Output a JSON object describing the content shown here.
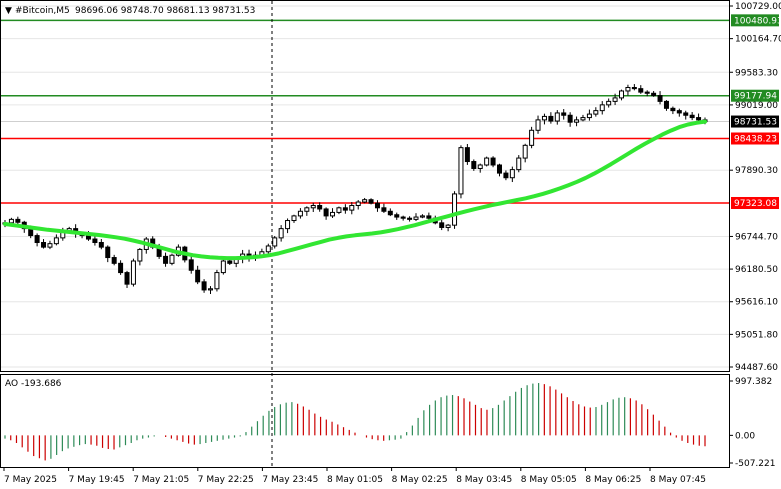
{
  "header": {
    "symbol": "#Bitcoin,M5",
    "ohlc": "98696.06 98748.70 98681.13 98731.53"
  },
  "ao_panel": {
    "label": "AO -193.686",
    "ticks": [
      "997.382",
      "0.00",
      "-507.221"
    ]
  },
  "colors": {
    "support_resistance_red": "#ff0000",
    "target_green": "#228b22",
    "moving_average": "#32e632",
    "ao_up": "#2e8b57",
    "ao_down": "#cc0000",
    "candle": "#000000",
    "current_price_bg": "#000000"
  },
  "chart_data": {
    "type": "candlestick",
    "ylim": [
      94487.6,
      100729.0
    ],
    "price_ticks": [
      "100729.00",
      "100164.70",
      "99583.30",
      "99019.00",
      "97890.30",
      "96744.70",
      "96180.50",
      "95616.10",
      "95051.80",
      "94487.60"
    ],
    "time_ticks": [
      "7 May 2025",
      "7 May 19:45",
      "7 May 21:05",
      "7 May 22:25",
      "7 May 23:45",
      "8 May 01:05",
      "8 May 02:25",
      "8 May 03:45",
      "8 May 05:05",
      "8 May 06:25",
      "8 May 07:45"
    ],
    "levels": [
      {
        "label": "100480.93",
        "value": 100480.93,
        "color": "green"
      },
      {
        "label": "99177.94",
        "value": 99177.94,
        "color": "green"
      },
      {
        "label": "98438.23",
        "value": 98438.23,
        "color": "red"
      },
      {
        "label": "97323.08",
        "value": 97323.08,
        "color": "red"
      }
    ],
    "current_price": {
      "label": "98731.53",
      "value": 98731.53
    },
    "close_series": [
      96980,
      97040,
      96990,
      96880,
      96760,
      96640,
      96560,
      96620,
      96720,
      96840,
      96880,
      96800,
      96760,
      96700,
      96640,
      96560,
      96380,
      96280,
      96120,
      95920,
      96320,
      96520,
      96700,
      96560,
      96400,
      96280,
      96420,
      96560,
      96340,
      96160,
      95960,
      95820,
      95840,
      96120,
      96320,
      96280,
      96360,
      96440,
      96380,
      96420,
      96480,
      96580,
      96720,
      96880,
      97020,
      97100,
      97180,
      97240,
      97280,
      97220,
      97100,
      97160,
      97240,
      97200,
      97280,
      97340,
      97380,
      97320,
      97240,
      97180,
      97120,
      97080,
      97060,
      97040,
      97080,
      97100,
      97060,
      96980,
      96900,
      96940,
      97480,
      98280,
      98040,
      97920,
      97980,
      98100,
      97980,
      97840,
      97760,
      97900,
      98100,
      98320,
      98580,
      98760,
      98820,
      98740,
      98880,
      98840,
      98720,
      98760,
      98800,
      98860,
      98920,
      99020,
      99080,
      99140,
      99260,
      99320,
      99300,
      99240,
      99220,
      99180,
      99080,
      98960,
      98920,
      98880,
      98840,
      98800,
      98760,
      98730
    ],
    "ma_series": [
      96960,
      96940,
      96920,
      96900,
      96880,
      96860,
      96845,
      96830,
      96815,
      96800,
      96785,
      96770,
      96750,
      96730,
      96705,
      96675,
      96640,
      96600,
      96560,
      96520,
      96480,
      96450,
      96420,
      96400,
      96385,
      96375,
      96370,
      96370,
      96375,
      96385,
      96400,
      96420,
      96450,
      96490,
      96530,
      96570,
      96610,
      96650,
      96690,
      96720,
      96745,
      96765,
      96780,
      96795,
      96815,
      96840,
      96870,
      96905,
      96940,
      96980,
      97020,
      97060,
      97100,
      97140,
      97180,
      97215,
      97250,
      97285,
      97315,
      97345,
      97375,
      97405,
      97440,
      97480,
      97525,
      97575,
      97630,
      97690,
      97755,
      97830,
      97910,
      97995,
      98085,
      98175,
      98265,
      98350,
      98430,
      98505,
      98575,
      98635,
      98680,
      98710,
      98730
    ],
    "ao_values": [
      -60,
      -90,
      -140,
      -220,
      -300,
      -380,
      -420,
      -460,
      -430,
      -360,
      -290,
      -240,
      -210,
      -180,
      -160,
      -170,
      -190,
      -230,
      -250,
      -260,
      -220,
      -180,
      -140,
      -90,
      -60,
      -40,
      -20,
      0,
      -30,
      -60,
      -90,
      -120,
      -150,
      -170,
      -160,
      -140,
      -120,
      -100,
      -80,
      -60,
      -40,
      -20,
      60,
      160,
      260,
      360,
      450,
      520,
      570,
      600,
      610,
      580,
      530,
      470,
      400,
      340,
      290,
      250,
      200,
      150,
      100,
      50,
      0,
      -40,
      -70,
      -90,
      -100,
      -90,
      -80,
      -60,
      60,
      180,
      320,
      460,
      560,
      640,
      700,
      730,
      740,
      720,
      680,
      620,
      560,
      500,
      470,
      500,
      560,
      640,
      720,
      800,
      870,
      920,
      950,
      960,
      940,
      900,
      840,
      770,
      700,
      630,
      570,
      530,
      510,
      520,
      560,
      610,
      660,
      690,
      700,
      680,
      640,
      570,
      480,
      380,
      270,
      160,
      50,
      -40,
      -100,
      -140,
      -170,
      -190,
      -200
    ]
  }
}
